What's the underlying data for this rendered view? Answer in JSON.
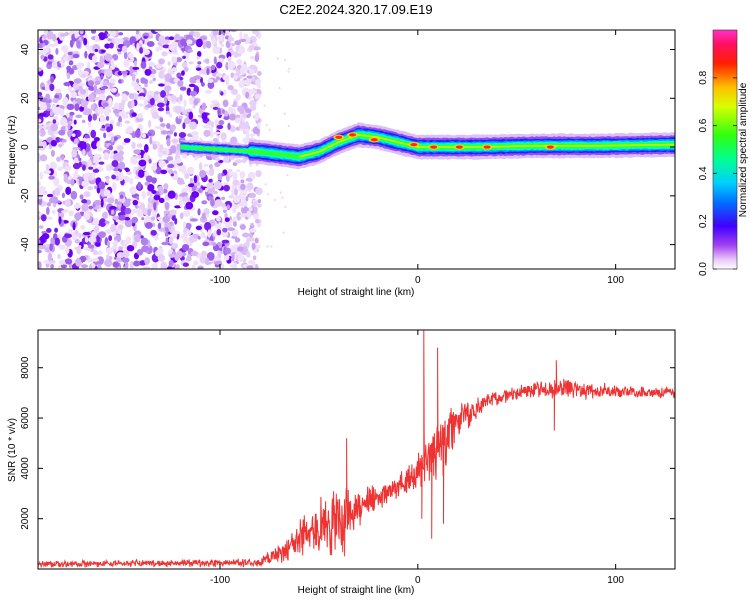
{
  "figure_title": "C2E2.2024.320.17.09.E19",
  "chart_data": [
    {
      "type": "heatmap",
      "panel": "top",
      "title": "C2E2.2024.320.17.09.E19",
      "xlabel": "Height of straight line (km)",
      "ylabel": "Frequency (Hz)",
      "xlim": [
        -192,
        130
      ],
      "ylim": [
        -50,
        48
      ],
      "xticks": [
        -100,
        0,
        100
      ],
      "xtick_labels": [
        "-100",
        "0",
        "100"
      ],
      "yticks": [
        -40,
        -20,
        0,
        20,
        40
      ],
      "ytick_labels": [
        "-40",
        "-20",
        "0",
        "20",
        "40"
      ],
      "colorbar": {
        "label": "Normalized spectral amplitude",
        "range": [
          0,
          1
        ],
        "ticks": [
          0,
          0.2,
          0.4,
          0.6,
          0.8
        ],
        "tick_labels": [
          "0.0",
          "0.2",
          "0.4",
          "0.6",
          "0.8"
        ],
        "colormap": [
          "#ffffff",
          "#e0c0f0",
          "#9a4ae8",
          "#6000f0",
          "#0040ff",
          "#00c0ff",
          "#00ffb0",
          "#20ff20",
          "#c0ff00",
          "#ffff00",
          "#ff8000",
          "#ff0000",
          "#ff40c0"
        ]
      },
      "regions": [
        {
          "name": "noise",
          "x_range": [
            -192,
            -80
          ],
          "freq_range": [
            -50,
            48
          ],
          "amplitude": [
            0.05,
            0.25
          ]
        },
        {
          "name": "band",
          "x_range": [
            -120,
            130
          ],
          "amplitude": [
            0.2,
            0.95
          ]
        }
      ],
      "band_center": [
        {
          "x": -120,
          "f": 0
        },
        {
          "x": -100,
          "f": -1
        },
        {
          "x": -80,
          "f": -2
        },
        {
          "x": -70,
          "f": -3
        },
        {
          "x": -60,
          "f": -4
        },
        {
          "x": -50,
          "f": -2
        },
        {
          "x": -40,
          "f": 2
        },
        {
          "x": -30,
          "f": 5
        },
        {
          "x": -20,
          "f": 4
        },
        {
          "x": -10,
          "f": 2
        },
        {
          "x": 0,
          "f": 0
        },
        {
          "x": 10,
          "f": 0
        },
        {
          "x": 30,
          "f": 0
        },
        {
          "x": 60,
          "f": 0.5
        },
        {
          "x": 90,
          "f": 0.5
        },
        {
          "x": 130,
          "f": 1
        }
      ],
      "peaks": [
        {
          "x": -40,
          "f": 4
        },
        {
          "x": -33,
          "f": 5
        },
        {
          "x": -22,
          "f": 3
        },
        {
          "x": -2,
          "f": 1
        },
        {
          "x": 8,
          "f": 0
        },
        {
          "x": 21,
          "f": 0
        },
        {
          "x": 35,
          "f": 0
        },
        {
          "x": 67,
          "f": 0
        }
      ]
    },
    {
      "type": "line",
      "panel": "bottom",
      "xlabel": "Height of straight line (km)",
      "ylabel": "SNR (10 * v/v)",
      "xlim": [
        -192,
        130
      ],
      "ylim": [
        0,
        9500
      ],
      "xticks": [
        -100,
        0,
        100
      ],
      "xtick_labels": [
        "-100",
        "0",
        "100"
      ],
      "yticks": [
        2000,
        4000,
        6000,
        8000
      ],
      "ytick_labels": [
        "2000",
        "4000",
        "6000",
        "8000"
      ],
      "color": "#ee3333",
      "envelope": [
        {
          "x": -192,
          "mean": 200,
          "spread": 150
        },
        {
          "x": -80,
          "mean": 250,
          "spread": 180
        },
        {
          "x": -70,
          "mean": 600,
          "spread": 500
        },
        {
          "x": -55,
          "mean": 1500,
          "spread": 1000
        },
        {
          "x": -40,
          "mean": 2000,
          "spread": 1800
        },
        {
          "x": -30,
          "mean": 2500,
          "spread": 900
        },
        {
          "x": -15,
          "mean": 3000,
          "spread": 500
        },
        {
          "x": -5,
          "mean": 3600,
          "spread": 600
        },
        {
          "x": 0,
          "mean": 4100,
          "spread": 900
        },
        {
          "x": 10,
          "mean": 4800,
          "spread": 1800
        },
        {
          "x": 20,
          "mean": 5800,
          "spread": 800
        },
        {
          "x": 35,
          "mean": 6700,
          "spread": 350
        },
        {
          "x": 55,
          "mean": 7100,
          "spread": 300
        },
        {
          "x": 75,
          "mean": 7150,
          "spread": 500
        },
        {
          "x": 100,
          "mean": 7050,
          "spread": 300
        },
        {
          "x": 130,
          "mean": 7000,
          "spread": 250
        }
      ],
      "spikes": [
        {
          "x": 3,
          "y": 9500
        },
        {
          "x": 2,
          "y": 2000
        },
        {
          "x": 7,
          "y": 1200
        },
        {
          "x": 10,
          "y": 8800
        },
        {
          "x": 13,
          "y": 1800
        },
        {
          "x": -36,
          "y": 5200
        },
        {
          "x": -37,
          "y": 500
        },
        {
          "x": 70,
          "y": 8300
        },
        {
          "x": 69,
          "y": 5500
        }
      ]
    }
  ]
}
